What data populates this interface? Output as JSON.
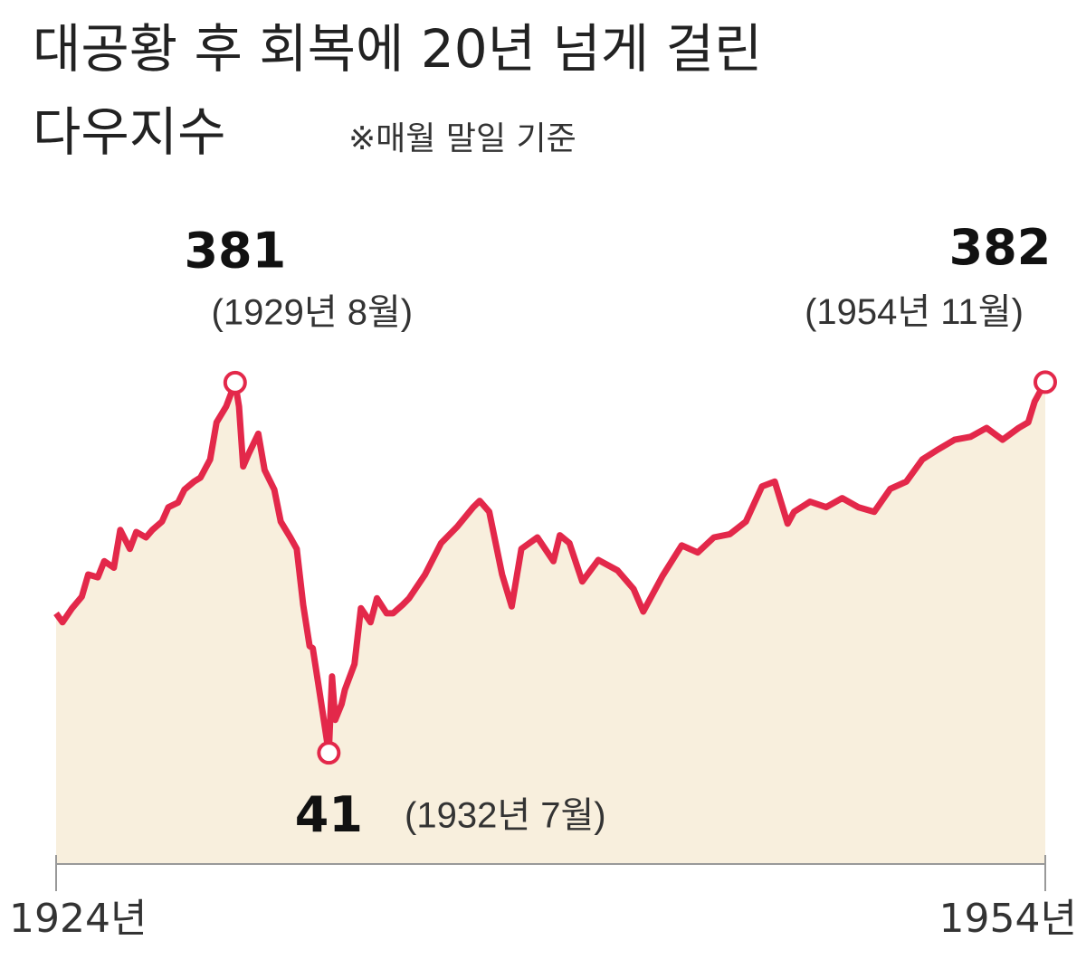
{
  "chart_data": {
    "type": "line",
    "title": "대공황 후 회복에 20년 넘게 걸린",
    "subtitle": "다우지수",
    "note": "※매월 말일 기준",
    "log_scale": true,
    "xlim": [
      1924,
      1954.83
    ],
    "ylim": [
      21,
      500
    ],
    "xticks": [
      {
        "value": 1924,
        "label": "1924년"
      },
      {
        "value": 1954.83,
        "label": "1954년"
      }
    ],
    "line_color": "#e3284a",
    "fill_color": "#f8efdd",
    "series": [
      {
        "name": "다우지수",
        "x": [
          1924,
          1924.2,
          1924.5,
          1924.8,
          1925,
          1925.3,
          1925.5,
          1925.8,
          1926,
          1926.3,
          1926.5,
          1926.8,
          1927,
          1927.3,
          1927.5,
          1927.8,
          1928,
          1928.3,
          1928.5,
          1928.8,
          1929,
          1929.3,
          1929.58,
          1929.7,
          1929.83,
          1930,
          1930.3,
          1930.5,
          1930.8,
          1931,
          1931.3,
          1931.5,
          1931.7,
          1931.9,
          1932,
          1932.2,
          1932.5,
          1932.6,
          1932.7,
          1932.9,
          1933,
          1933.3,
          1933.5,
          1933.8,
          1934,
          1934.3,
          1934.5,
          1934.8,
          1935,
          1935.5,
          1936,
          1936.5,
          1937,
          1937.2,
          1937.5,
          1937.9,
          1938.2,
          1938.5,
          1939,
          1939.5,
          1939.7,
          1940,
          1940.4,
          1940.9,
          1941.5,
          1942,
          1942.3,
          1942.9,
          1943.5,
          1944,
          1944.5,
          1945,
          1945.5,
          1946,
          1946.4,
          1946.8,
          1947,
          1947.5,
          1948,
          1948.5,
          1949,
          1949.5,
          1950,
          1950.5,
          1951,
          1951.5,
          1952,
          1952.5,
          1953,
          1953.5,
          1954,
          1954.3,
          1954.5,
          1954.83
        ],
        "values": [
          95,
          90,
          98,
          105,
          120,
          118,
          130,
          125,
          157,
          140,
          155,
          150,
          157,
          165,
          180,
          185,
          200,
          210,
          215,
          240,
          300,
          330,
          381,
          330,
          230,
          248,
          280,
          225,
          200,
          165,
          150,
          140,
          100,
          78,
          77,
          60,
          41,
          65,
          50,
          55,
          60,
          70,
          98,
          90,
          104,
          95,
          95,
          100,
          104,
          120,
          145,
          160,
          180,
          187,
          175,
          120,
          99,
          140,
          150,
          130,
          152,
          145,
          115,
          131,
          123,
          110,
          96,
          119,
          143,
          137,
          150,
          153,
          165,
          204,
          210,
          163,
          175,
          186,
          180,
          190,
          180,
          175,
          201,
          210,
          240,
          255,
          270,
          275,
          290,
          270,
          290,
          300,
          340,
          382
        ]
      }
    ],
    "annotations": [
      {
        "x": 1929.58,
        "y": 381,
        "text": "(1929년 8월)"
      },
      {
        "x": 1932.5,
        "y": 41,
        "text": "(1932년 7월)"
      },
      {
        "x": 1954.83,
        "y": 382,
        "text": "(1954년 11월)"
      }
    ]
  }
}
